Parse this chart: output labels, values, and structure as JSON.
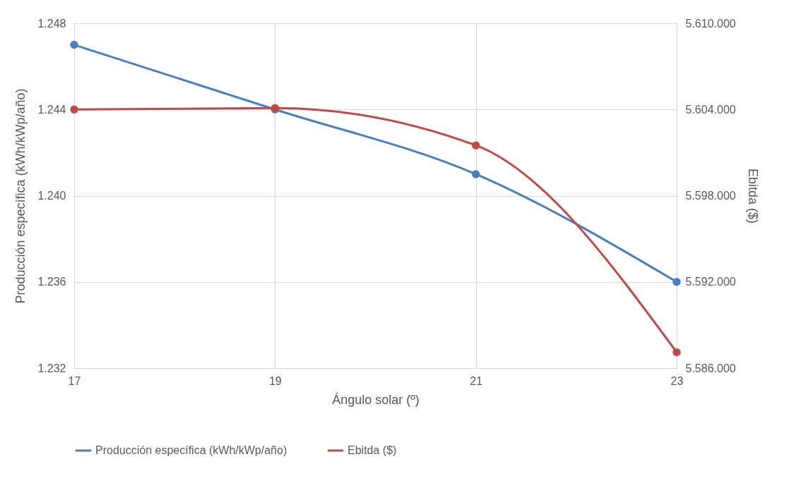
{
  "chart_data": {
    "type": "line",
    "xlabel": "Ángulo solar (º)",
    "ylabel": "Producción específica (kWh/kWp/año)",
    "y2label": "Ebitda ($)",
    "x": [
      17,
      19,
      21,
      23
    ],
    "series": [
      {
        "name": "Producción específica (kWh/kWp/año)",
        "color": "#4a7ebb",
        "values": [
          1247,
          1244,
          1241,
          1236
        ]
      },
      {
        "name": "Ebitda ($)",
        "color": "#be4b48",
        "values": [
          5604000,
          5604100,
          5601500,
          5587100
        ],
        "axis": "y2"
      }
    ],
    "xlim": [
      17,
      23
    ],
    "xticks": [
      17,
      19,
      21,
      23
    ],
    "ylim": [
      1232,
      1248
    ],
    "yticks": [
      {
        "value": 1232,
        "label": "1.232"
      },
      {
        "value": 1236,
        "label": "1.236"
      },
      {
        "value": 1240,
        "label": "1.240"
      },
      {
        "value": 1244,
        "label": "1.244"
      },
      {
        "value": 1248,
        "label": "1.248"
      }
    ],
    "y2lim": [
      5586000,
      5610000
    ],
    "y2ticks": [
      {
        "value": 5586000,
        "label": "5.586.000"
      },
      {
        "value": 5592000,
        "label": "5.592.000"
      },
      {
        "value": 5598000,
        "label": "5.598.000"
      },
      {
        "value": 5604000,
        "label": "5.604.000"
      },
      {
        "value": 5610000,
        "label": "5.610.000"
      }
    ],
    "grid": true,
    "legend": "bottom",
    "marker": "circle",
    "line_style": "solid"
  }
}
